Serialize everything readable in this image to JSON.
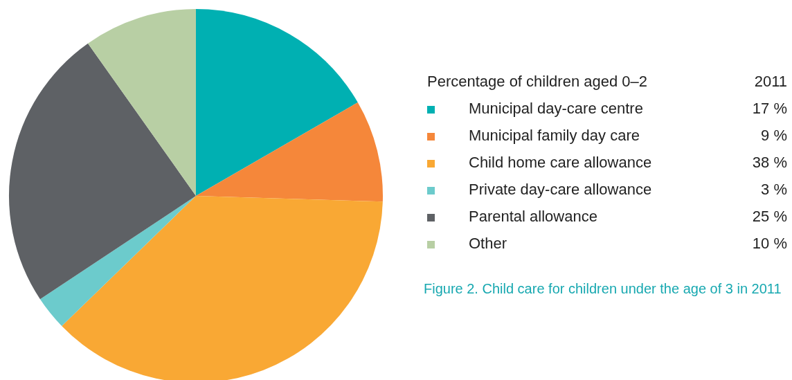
{
  "chart_data": {
    "type": "pie",
    "title": "Figure 2. Child care for children under the age of 3 in 2011",
    "legend_title": "Percentage of children aged 0–2",
    "annotations": [
      "2011"
    ],
    "legend": "right",
    "categories": [
      "Municipal day-care centre",
      "Municipal family day care",
      "Child home care allowance",
      "Private day-care allowance",
      "Parental allowance",
      "Other"
    ],
    "values": [
      17,
      9,
      38,
      3,
      25,
      10
    ],
    "value_labels": [
      "17 %",
      "9 %",
      "38 %",
      "3 %",
      "25 %",
      "10 %"
    ],
    "colors": [
      "#00b0b2",
      "#f5873a",
      "#f9a834",
      "#6ccbcc",
      "#5e6165",
      "#b8cfa4"
    ]
  }
}
